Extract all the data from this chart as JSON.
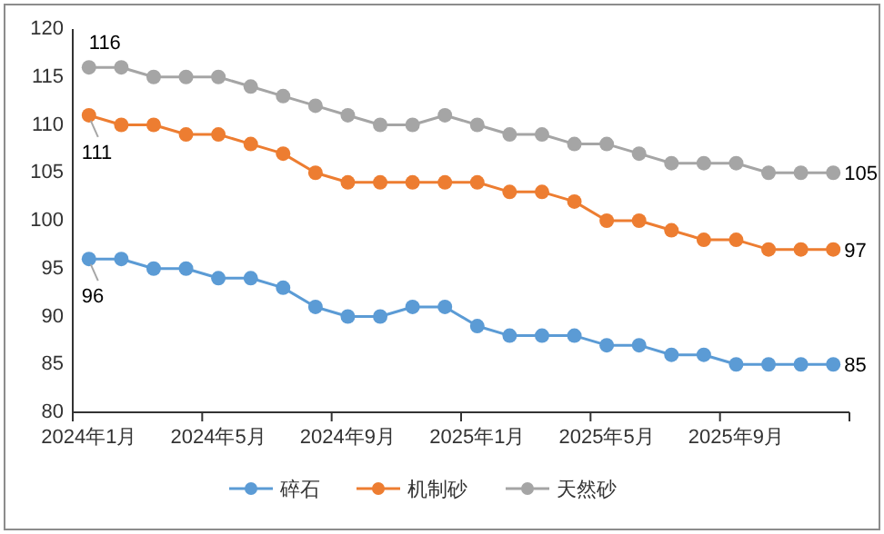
{
  "chart_data": {
    "type": "line",
    "categories": [
      "2024年1月",
      null,
      null,
      null,
      "2024年5月",
      null,
      null,
      null,
      "2024年9月",
      null,
      null,
      null,
      "2025年1月",
      null,
      null,
      null,
      "2025年5月",
      null,
      null,
      null,
      "2025年9月",
      null,
      null,
      null
    ],
    "series": [
      {
        "name": "碎石",
        "color": "#5b9bd5",
        "values": [
          96,
          96,
          95,
          95,
          94,
          94,
          93,
          91,
          90,
          90,
          91,
          91,
          89,
          88,
          88,
          88,
          87,
          87,
          86,
          86,
          85,
          85,
          85,
          85
        ],
        "value_labels": [
          "96",
          null,
          null,
          null,
          null,
          null,
          null,
          null,
          null,
          null,
          null,
          null,
          null,
          null,
          null,
          null,
          null,
          null,
          null,
          null,
          null,
          null,
          null,
          "85"
        ]
      },
      {
        "name": "机制砂",
        "color": "#ed7d31",
        "values": [
          111,
          110,
          110,
          109,
          109,
          108,
          107,
          105,
          104,
          104,
          104,
          104,
          104,
          103,
          103,
          102,
          100,
          100,
          99,
          98,
          98,
          97,
          97,
          97
        ],
        "value_labels": [
          "111",
          null,
          null,
          null,
          null,
          null,
          null,
          null,
          null,
          null,
          null,
          null,
          null,
          null,
          null,
          null,
          null,
          null,
          null,
          null,
          null,
          null,
          null,
          "97"
        ]
      },
      {
        "name": "天然砂",
        "color": "#a5a5a5",
        "values": [
          116,
          116,
          115,
          115,
          115,
          114,
          113,
          112,
          111,
          110,
          110,
          111,
          110,
          109,
          109,
          108,
          108,
          107,
          106,
          106,
          106,
          105,
          105,
          105
        ],
        "value_labels": [
          "116",
          null,
          null,
          null,
          null,
          null,
          null,
          null,
          null,
          null,
          null,
          null,
          null,
          null,
          null,
          null,
          null,
          null,
          null,
          null,
          null,
          null,
          null,
          "105"
        ]
      }
    ],
    "ylim": [
      80,
      120
    ],
    "yticks": [
      80,
      85,
      90,
      95,
      100,
      105,
      110,
      115,
      120
    ],
    "grid": false,
    "legend": "bottom",
    "marker": "circle",
    "line_style": "solid"
  }
}
